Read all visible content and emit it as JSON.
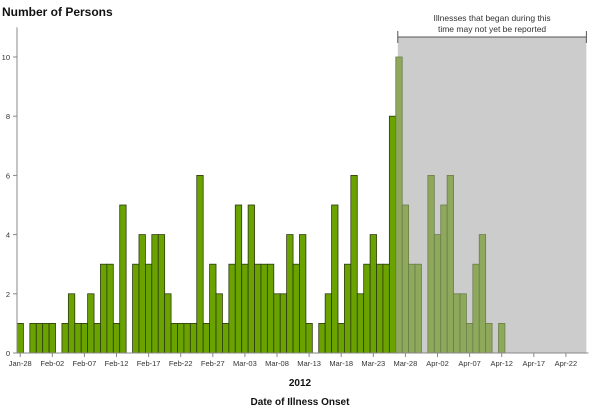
{
  "chart_data": {
    "type": "bar",
    "ylabel": "Number of Persons",
    "xlabel": "Date of Illness Onset",
    "year_label": "2012",
    "ylim": [
      0,
      11
    ],
    "yticks": [
      0,
      2,
      4,
      6,
      8,
      10
    ],
    "x_range": [
      "Jan-28",
      "Apr-25"
    ],
    "xtick_labels": [
      "Jan-28",
      "Feb-02",
      "Feb-07",
      "Feb-12",
      "Feb-17",
      "Feb-22",
      "Feb-27",
      "Mar-03",
      "Mar-08",
      "Mar-13",
      "Mar-18",
      "Mar-23",
      "Mar-28",
      "Apr-02",
      "Apr-07",
      "Apr-12",
      "Apr-17",
      "Apr-22"
    ],
    "start_date": "Jan-28",
    "values": [
      1,
      0,
      1,
      1,
      1,
      1,
      0,
      1,
      2,
      1,
      1,
      2,
      1,
      3,
      3,
      1,
      5,
      0,
      3,
      4,
      3,
      4,
      4,
      2,
      1,
      1,
      1,
      1,
      6,
      1,
      3,
      2,
      1,
      3,
      5,
      3,
      5,
      3,
      3,
      3,
      2,
      2,
      4,
      3,
      4,
      1,
      0,
      1,
      2,
      5,
      1,
      3,
      6,
      2,
      3,
      4,
      3,
      3,
      8,
      10,
      5,
      3,
      3,
      0,
      6,
      4,
      5,
      6,
      2,
      2,
      1,
      3,
      4,
      1,
      0,
      1
    ],
    "reporting_lag_start": "Mar-27",
    "annotation": "Illnesses that began during this time may not yet be reported",
    "annotation_lines": [
      "Illnesses that began during this",
      "time may not yet be reported"
    ],
    "colors": {
      "reported": "#6aa300",
      "lag": "#8ea95b",
      "shade": "#cccccc",
      "outline": "#2e3a10"
    },
    "grid": false
  }
}
